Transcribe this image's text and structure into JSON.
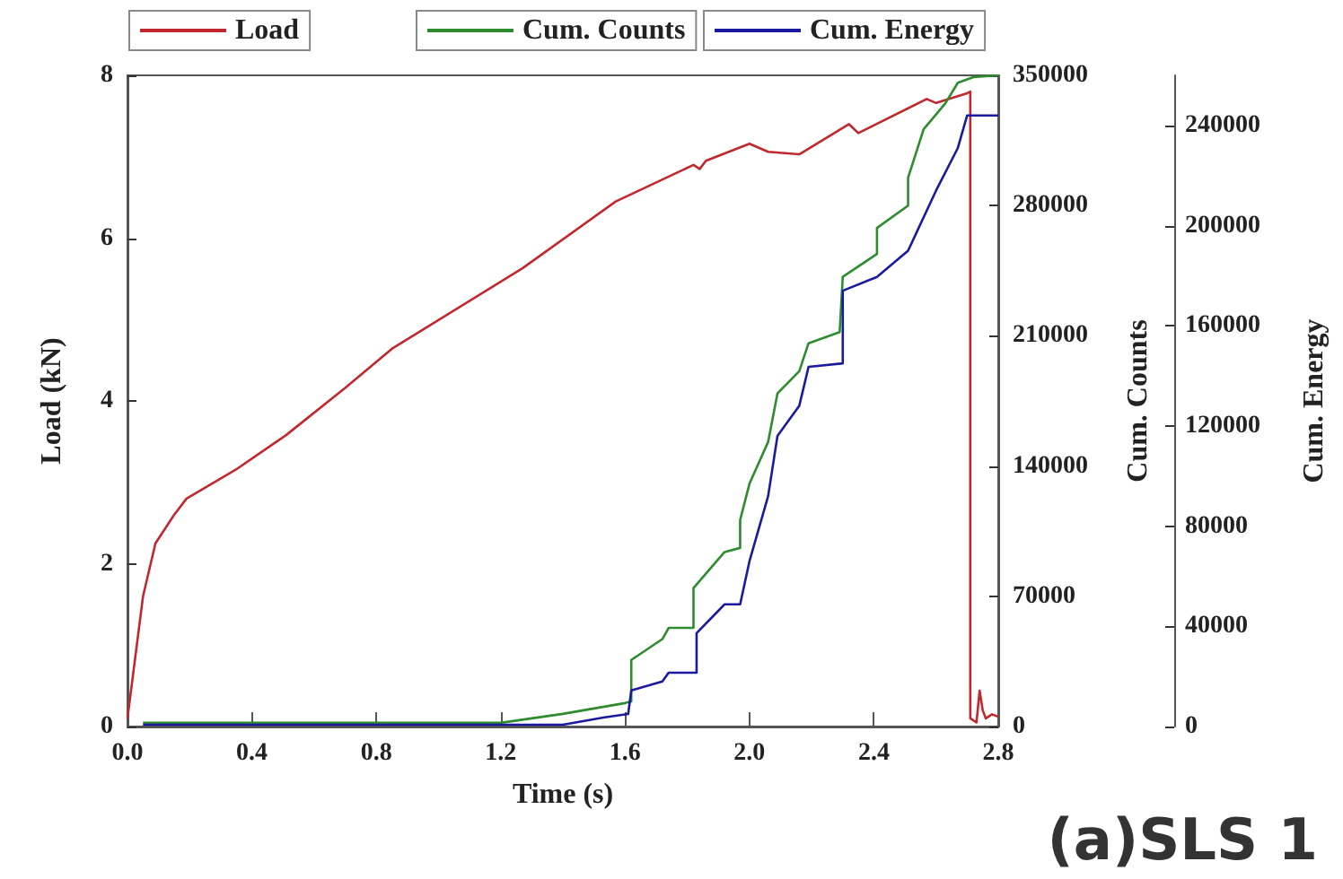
{
  "chart_data": {
    "type": "line",
    "xlabel": "Time (s)",
    "ylabel": "Load (kN)",
    "y2label": "Cum. Counts",
    "y3label": "Cum. Energy",
    "annotations": [
      "(a)SLS 1"
    ],
    "xlim": [
      0,
      2.8
    ],
    "xticks": [
      {
        "value": 0,
        "label": "0.0"
      },
      0.4,
      0.8,
      1.2,
      1.6,
      {
        "value": 2,
        "label": "2.0"
      },
      2.4,
      2.8
    ],
    "ylim": [
      0,
      8
    ],
    "yticks": [
      0,
      2,
      4,
      6,
      8
    ],
    "y2lim": [
      0,
      350000
    ],
    "y2ticks": [
      0,
      70000,
      140000,
      210000,
      280000,
      350000
    ],
    "y3lim": [
      0,
      260000
    ],
    "y3ticks": [
      0,
      40000,
      80000,
      120000,
      160000,
      200000,
      240000
    ],
    "legend": "top",
    "grid": false,
    "marker": "none",
    "line_style": "solid",
    "series": [
      {
        "name": "Load",
        "color": "#c0282d",
        "x": [
          0,
          0.05,
          0.09,
          0.15,
          0.19,
          0.35,
          0.51,
          0.7,
          0.85,
          1.27,
          1.57,
          1.82,
          1.84,
          1.86,
          2.0,
          2.06,
          2.16,
          2.32,
          2.35,
          2.57,
          2.6,
          2.7,
          2.71,
          2.71,
          2.73,
          2.74,
          2.75,
          2.76,
          2.78,
          2.8
        ],
        "values": [
          0.1,
          1.6,
          2.25,
          2.6,
          2.8,
          3.16,
          3.58,
          4.16,
          4.64,
          5.63,
          6.45,
          6.9,
          6.85,
          6.95,
          7.16,
          7.06,
          7.03,
          7.4,
          7.29,
          7.71,
          7.66,
          7.78,
          7.8,
          0.1,
          0.05,
          0.44,
          0.2,
          0.1,
          0.15,
          0.12
        ]
      },
      {
        "name": "Cum. Counts",
        "color": "#2e8b2e",
        "axis": "y2",
        "x": [
          0.05,
          1.2,
          1.4,
          1.6,
          1.62,
          1.62,
          1.72,
          1.74,
          1.82,
          1.82,
          1.92,
          1.97,
          1.97,
          2.0,
          2.06,
          2.09,
          2.16,
          2.19,
          2.29,
          2.3,
          2.41,
          2.41,
          2.51,
          2.51,
          2.56,
          2.63,
          2.67,
          2.72,
          2.8
        ],
        "values": [
          2000,
          2000,
          6800,
          12600,
          13500,
          35800,
          47000,
          53000,
          53000,
          74400,
          93800,
          96000,
          111000,
          130500,
          153000,
          179000,
          191000,
          206000,
          212000,
          241700,
          254000,
          268000,
          280000,
          295000,
          321000,
          335000,
          346000,
          349000,
          350000
        ]
      },
      {
        "name": "Cum. Energy",
        "color": "#1a1aa0",
        "axis": "y3",
        "x": [
          0.05,
          1.4,
          1.53,
          1.61,
          1.62,
          1.72,
          1.74,
          1.83,
          1.83,
          1.92,
          1.97,
          2.0,
          2.06,
          2.09,
          2.16,
          2.19,
          2.3,
          2.3,
          2.41,
          2.51,
          2.6,
          2.67,
          2.7,
          2.8
        ],
        "values": [
          700,
          700,
          3600,
          5000,
          14400,
          18000,
          21500,
          21500,
          37300,
          48800,
          48800,
          66000,
          92000,
          116000,
          128000,
          143600,
          145000,
          174000,
          179500,
          190000,
          214000,
          231000,
          244000,
          244000
        ]
      }
    ]
  }
}
